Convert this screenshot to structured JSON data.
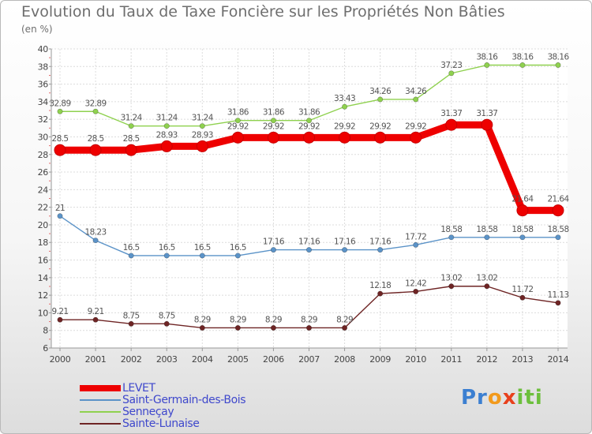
{
  "chart_data": {
    "type": "line",
    "title": "Evolution du Taux de Taxe Foncière sur les Propriétés Non Bâties",
    "ylabel": "(en %)",
    "xlabel": "",
    "ylim": [
      6,
      40
    ],
    "ytick_step": 2,
    "grid": true,
    "legend_position": "bottom-left",
    "categories": [
      "2000",
      "2001",
      "2002",
      "2003",
      "2004",
      "2005",
      "2006",
      "2007",
      "2008",
      "2009",
      "2010",
      "2011",
      "2012",
      "2013",
      "2014"
    ],
    "series": [
      {
        "name": "LEVET",
        "color": "#ee0000",
        "values": [
          28.5,
          28.5,
          28.5,
          28.93,
          28.93,
          29.92,
          29.92,
          29.92,
          29.92,
          29.92,
          29.92,
          31.37,
          31.37,
          21.64,
          21.64
        ],
        "labels": [
          "28.5",
          "28.5",
          "28.5",
          "28.93",
          "28.93",
          "29.92",
          "29.92",
          "29.92",
          "29.92",
          "29.92",
          "29.92",
          "31.37",
          "31.37",
          "21.64",
          "21.64"
        ]
      },
      {
        "name": "Saint-Germain-des-Bois",
        "color": "#5b93c8",
        "values": [
          21,
          18.23,
          16.5,
          16.5,
          16.5,
          16.5,
          17.16,
          17.16,
          17.16,
          17.16,
          17.72,
          18.58,
          18.58,
          18.58,
          18.58
        ],
        "labels": [
          "21",
          "18.23",
          "16.5",
          "16.5",
          "16.5",
          "16.5",
          "17.16",
          "17.16",
          "17.16",
          "17.16",
          "17.72",
          "18.58",
          "18.58",
          "18.58",
          "18.58"
        ]
      },
      {
        "name": "Senneçay",
        "color": "#8fd14f",
        "values": [
          32.89,
          32.89,
          31.24,
          31.24,
          31.24,
          31.86,
          31.86,
          31.86,
          33.43,
          34.26,
          34.26,
          37.23,
          38.16,
          38.16,
          38.16
        ],
        "labels": [
          "32.89",
          "32.89",
          "31.24",
          "31.24",
          "31.24",
          "31.86",
          "31.86",
          "31.86",
          "33.43",
          "34.26",
          "34.26",
          "37.23",
          "38.16",
          "38.16",
          "38.16"
        ]
      },
      {
        "name": "Sainte-Lunaise",
        "color": "#6e2424",
        "values": [
          9.21,
          9.21,
          8.75,
          8.75,
          8.29,
          8.29,
          8.29,
          8.29,
          8.29,
          12.18,
          12.42,
          13.02,
          13.02,
          11.72,
          11.13
        ],
        "labels": [
          "9.21",
          "9.21",
          "8.75",
          "8.75",
          "8.29",
          "8.29",
          "8.29",
          "8.29",
          "8.29",
          "12.18",
          "12.42",
          "13.02",
          "13.02",
          "11.72",
          "11.13"
        ]
      }
    ]
  },
  "logo": {
    "p1": "Pr",
    "p2": "o",
    "p3": "x",
    "p4": "iti"
  }
}
